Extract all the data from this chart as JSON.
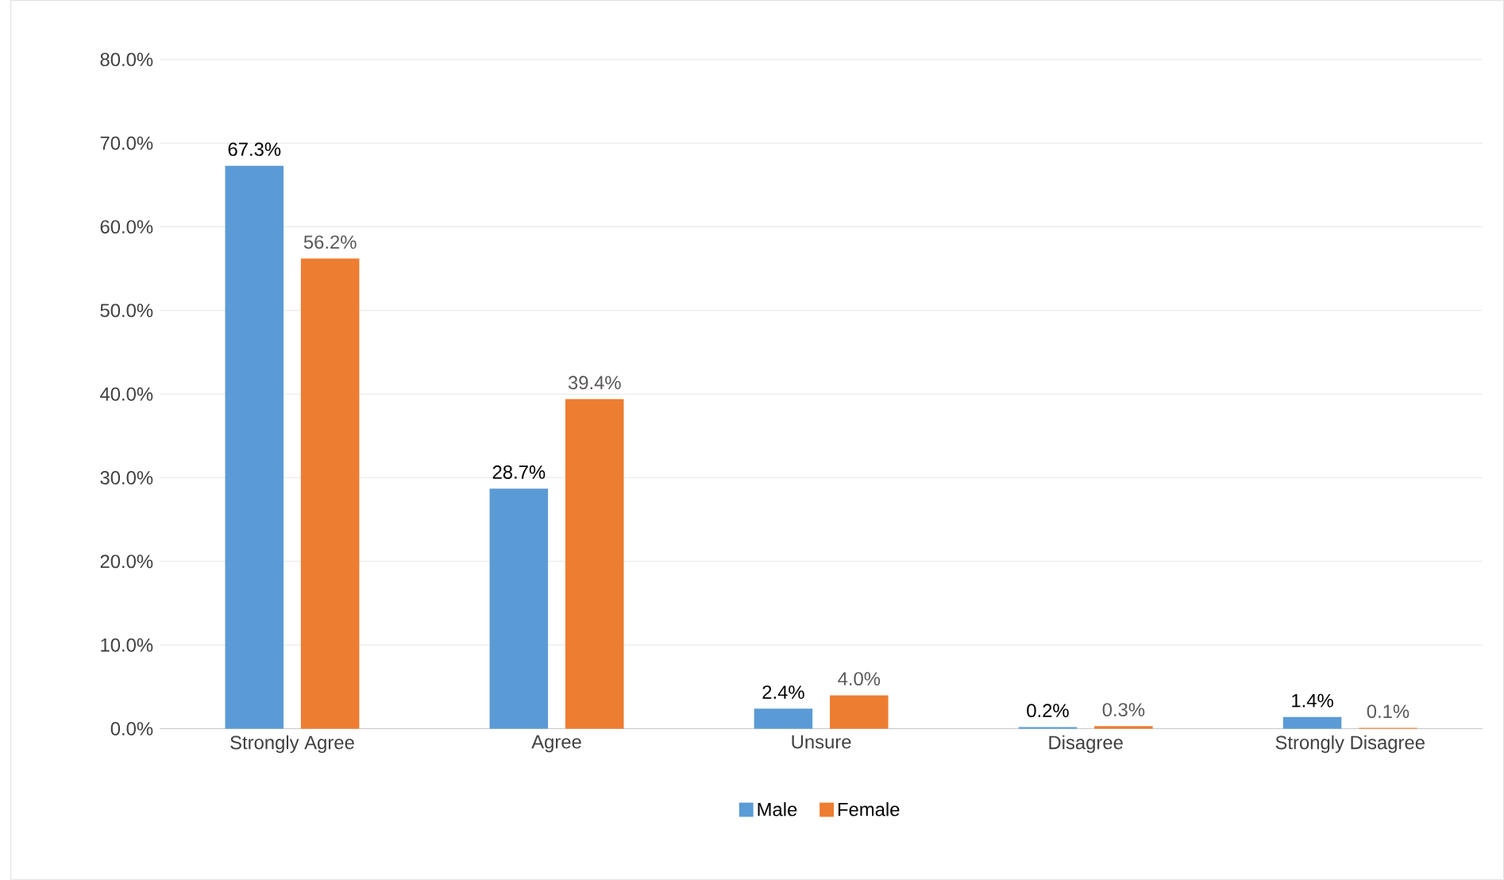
{
  "chart_data": {
    "type": "bar",
    "categories": [
      "Strongly Agree",
      "Agree",
      "Unsure",
      "Disagree",
      "Strongly Disagree"
    ],
    "series": [
      {
        "name": "Male",
        "color": "#5b9bd5",
        "values": [
          67.3,
          28.7,
          2.4,
          0.2,
          1.4
        ],
        "value_labels": [
          "67.3%",
          "28.7%",
          "2.4%",
          "0.2%",
          "1.4%"
        ]
      },
      {
        "name": "Female",
        "color": "#ed7d31",
        "values": [
          56.2,
          39.4,
          4.0,
          0.3,
          0.1
        ],
        "value_labels": [
          "56.2%",
          "39.4%",
          "4.0%",
          "0.3%",
          "0.1%"
        ]
      }
    ],
    "ylim": [
      0,
      80
    ],
    "yticks": [
      {
        "value": 0,
        "label": "0.0%"
      },
      {
        "value": 10,
        "label": "10.0%"
      },
      {
        "value": 20,
        "label": "20.0%"
      },
      {
        "value": 30,
        "label": "30.0%"
      },
      {
        "value": 40,
        "label": "40.0%"
      },
      {
        "value": 50,
        "label": "50.0%"
      },
      {
        "value": 60,
        "label": "60.0%"
      },
      {
        "value": 70,
        "label": "70.0%"
      },
      {
        "value": 80,
        "label": "80.0%"
      }
    ],
    "grid": "y",
    "legend": "bottom"
  }
}
